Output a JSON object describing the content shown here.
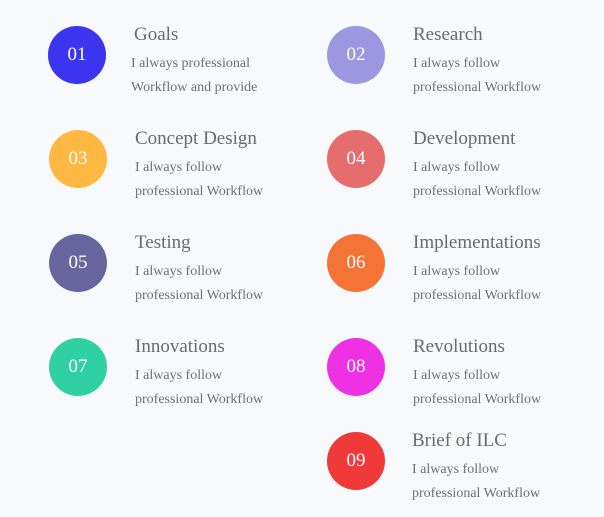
{
  "steps": [
    {
      "number": "01",
      "title": "Goals",
      "line1": "I always professional",
      "line2": "Workflow and provide",
      "color": "#3b35f0"
    },
    {
      "number": "02",
      "title": "Research",
      "line1": "I always follow",
      "line2": "professional Workflow",
      "color": "#9c97df"
    },
    {
      "number": "03",
      "title": "Concept Design",
      "line1": "I always follow",
      "line2": "professional Workflow",
      "color": "#ffb841"
    },
    {
      "number": "04",
      "title": "Development",
      "line1": "I always follow",
      "line2": "professional Workflow",
      "color": "#e66d6d"
    },
    {
      "number": "05",
      "title": "Testing",
      "line1": "I always follow",
      "line2": "professional Workflow",
      "color": "#67649e"
    },
    {
      "number": "06",
      "title": "Implementations",
      "line1": "I always follow",
      "line2": "professional Workflow",
      "color": "#f47437"
    },
    {
      "number": "07",
      "title": "Innovations",
      "line1": "I always follow",
      "line2": "professional Workflow",
      "color": "#2fd1a3"
    },
    {
      "number": "08",
      "title": "Revolutions",
      "line1": "I always follow",
      "line2": "professional Workflow",
      "color": "#ef31e4"
    },
    {
      "number": "09",
      "title": "Brief of ILC",
      "line1": "I always follow",
      "line2": "professional Workflow",
      "color": "#f03a3a"
    }
  ]
}
